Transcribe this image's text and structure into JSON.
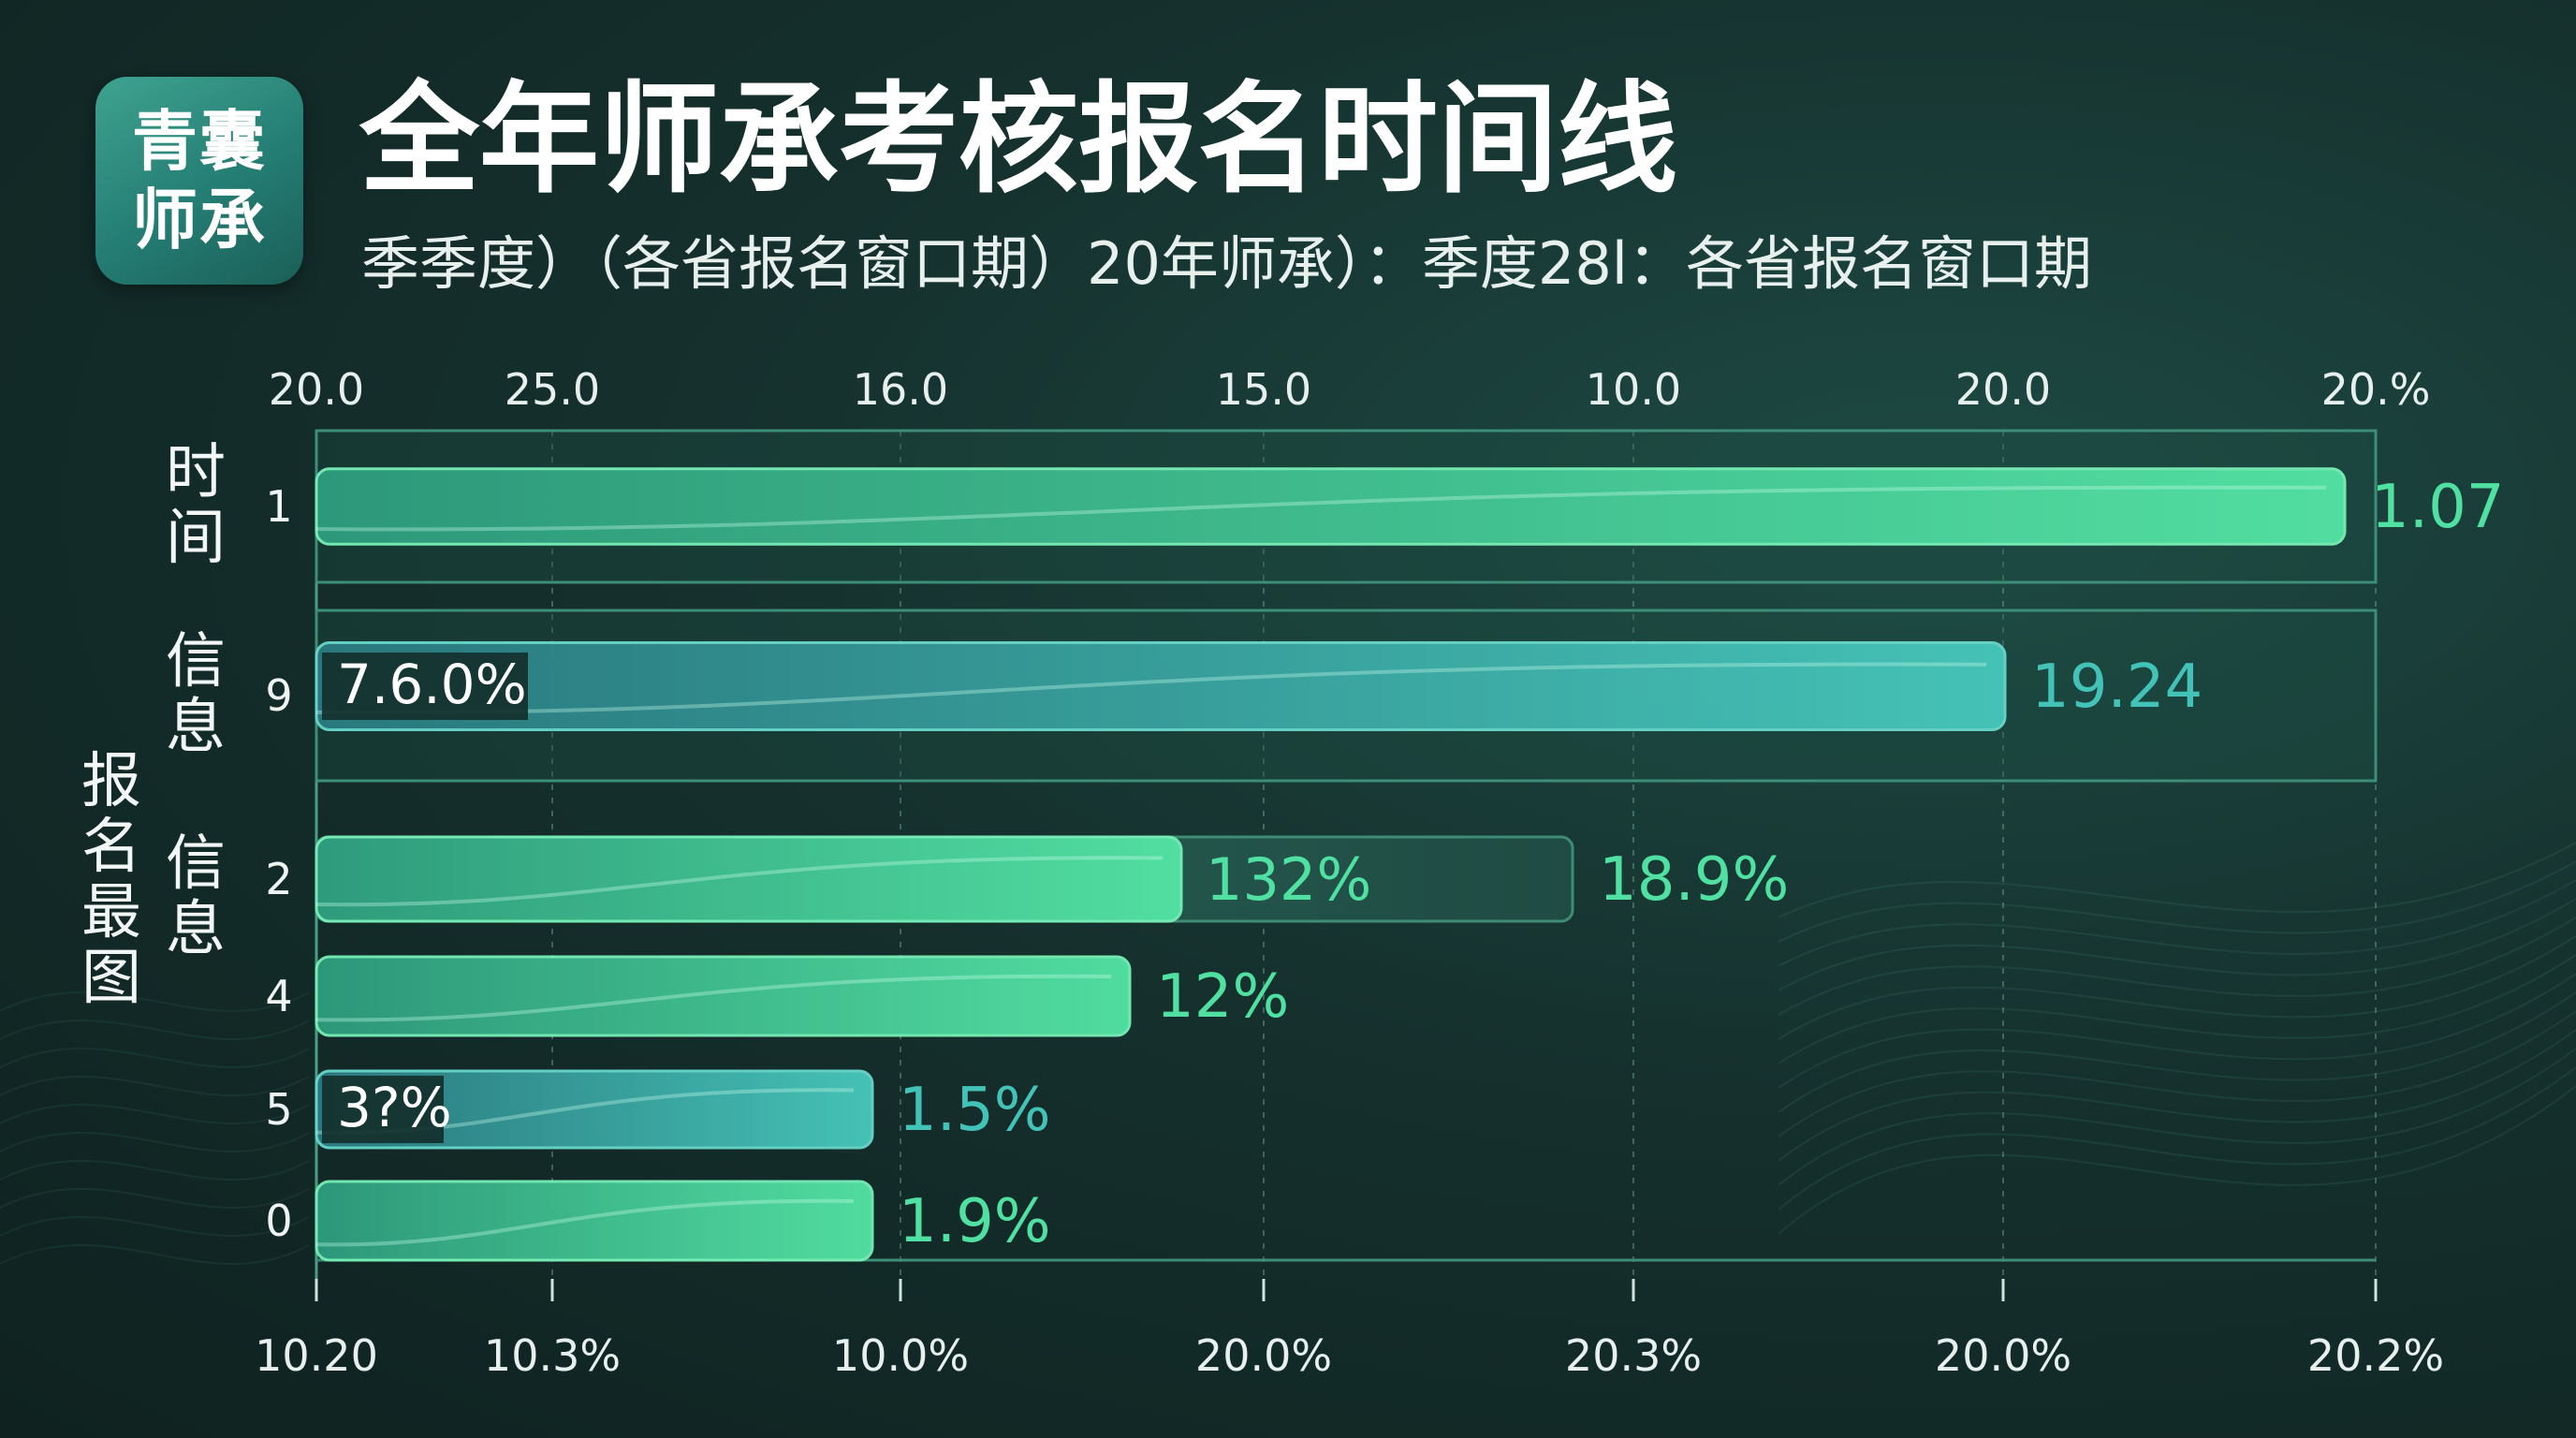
{
  "logo": {
    "line1": "青囊",
    "line2": "师承"
  },
  "title": "全年师承考核报名时间线",
  "subtitle": "季季度）（各省报名窗口期）20年师承）：季度28l：各省报名窗口期",
  "colors": {
    "green": "#4fe0a2",
    "teal": "#43c2b8",
    "dark_box": "#2a5a52",
    "grid": "#3c8e78",
    "background": "#15302d"
  },
  "chart_data": {
    "type": "bar",
    "orientation": "horizontal",
    "top_axis_ticks": [
      "20.0",
      "25.0",
      "16.0",
      "15.0",
      "10.0",
      "20.0",
      "20.%"
    ],
    "bottom_axis_ticks": [
      "10.20",
      "10.3%",
      "10.0%",
      "20.0%",
      "20.3%",
      "20.0%",
      "20.2%"
    ],
    "y_group_labels": [
      {
        "text": "时间"
      },
      {
        "text": "信息"
      },
      {
        "text": "信息"
      },
      {
        "text": "报名最图"
      }
    ],
    "xlim": [
      0,
      1
    ],
    "rows": [
      {
        "row_label": "1",
        "value": 0.985,
        "color": "green",
        "highlighted": true,
        "end_label": "1.07",
        "inner_label": ""
      },
      {
        "row_label": "9",
        "value": 0.82,
        "color": "teal",
        "highlighted": true,
        "end_label": "19.24",
        "inner_label": "7.6.0%"
      },
      {
        "row_label": "2",
        "value": 0.42,
        "color": "green",
        "highlighted": false,
        "end_label": "18.9%",
        "inner_label": "",
        "segment_value": 0.61,
        "segment_label": "132%"
      },
      {
        "row_label": "4",
        "value": 0.395,
        "color": "green",
        "highlighted": false,
        "end_label": "12%",
        "inner_label": ""
      },
      {
        "row_label": "5",
        "value": 0.27,
        "color": "teal",
        "highlighted": false,
        "end_label": "1.5%",
        "inner_label": "3?%"
      },
      {
        "row_label": "0",
        "value": 0.27,
        "color": "green",
        "highlighted": false,
        "end_label": "1.9%",
        "inner_label": ""
      }
    ]
  }
}
